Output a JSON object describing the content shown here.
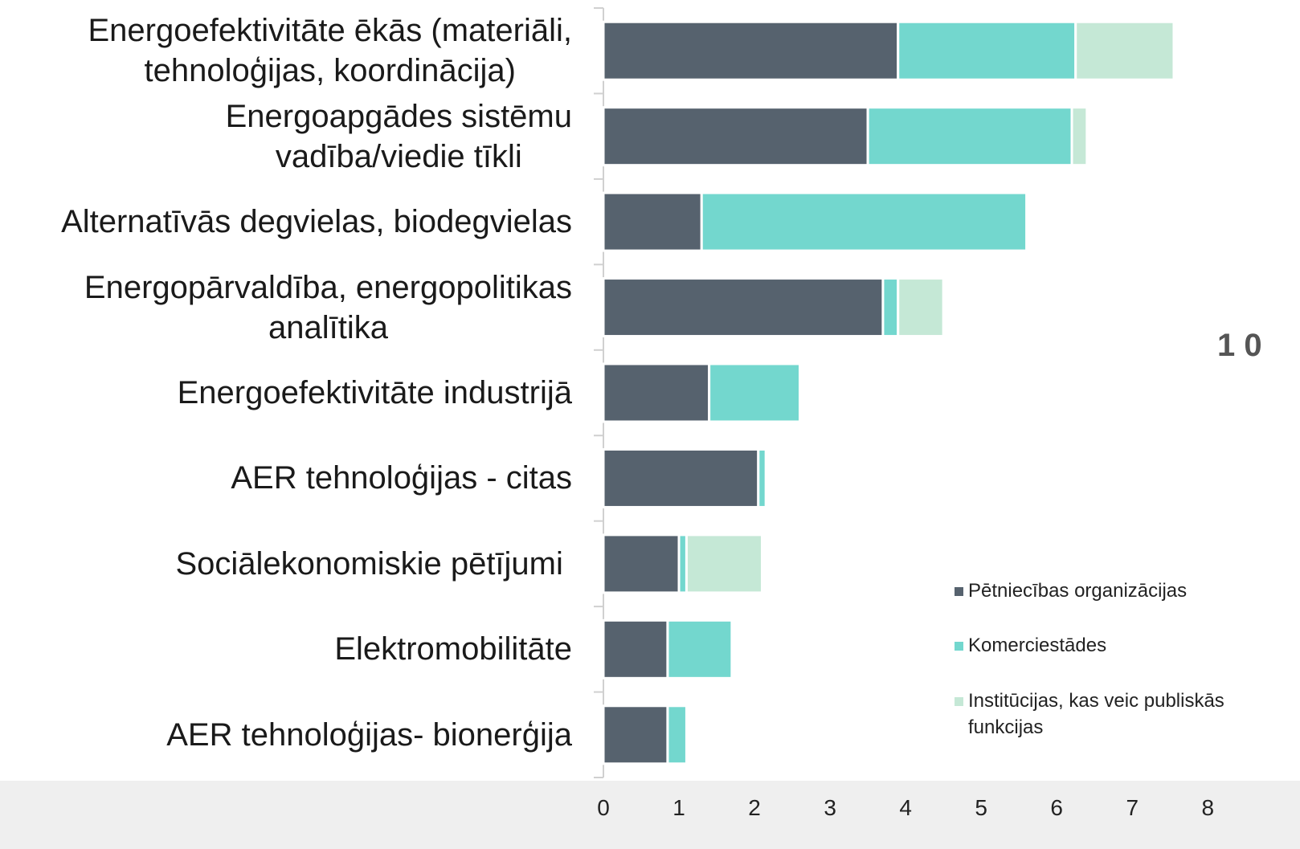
{
  "chart_data": {
    "type": "stacked-barh",
    "categories": [
      "Energoefektivitāte ēkās (materiāli,\ntehnoloģijas, koordinācija)",
      "Energoapgādes sistēmu\nvadība/viedie tīkli",
      "Alternatīvās degvielas, biodegvielas",
      "Energopārvaldība, energopolitikas\nanalītika",
      "Energoefektivitāte industrijā",
      "AER tehnoloģijas - citas",
      "Sociālekonomiskie pētījumi ",
      "Elektromobilitāte",
      "AER tehnoloģijas- bionerģija"
    ],
    "series": [
      {
        "name": "Pētniecības organizācijas",
        "color": "#56626e",
        "values": [
          3.9,
          3.5,
          1.3,
          3.7,
          1.4,
          2.05,
          1.0,
          0.85,
          0.85
        ]
      },
      {
        "name": "Komerciestādes",
        "color": "#73d7ce",
        "values": [
          2.35,
          2.7,
          4.3,
          0.2,
          1.2,
          0.1,
          0.1,
          0.85,
          0.25
        ]
      },
      {
        "name": "Institūcijas, kas veic publiskās funkcijas",
        "color": "#c5e8d6",
        "values": [
          1.3,
          0.2,
          0,
          0.6,
          0,
          0,
          1.0,
          0,
          0
        ]
      }
    ],
    "xlim": [
      0,
      9.22
    ],
    "xticks": [
      0,
      1,
      2,
      3,
      4,
      5,
      6,
      7,
      8
    ],
    "annotations": [
      "1 0"
    ]
  }
}
